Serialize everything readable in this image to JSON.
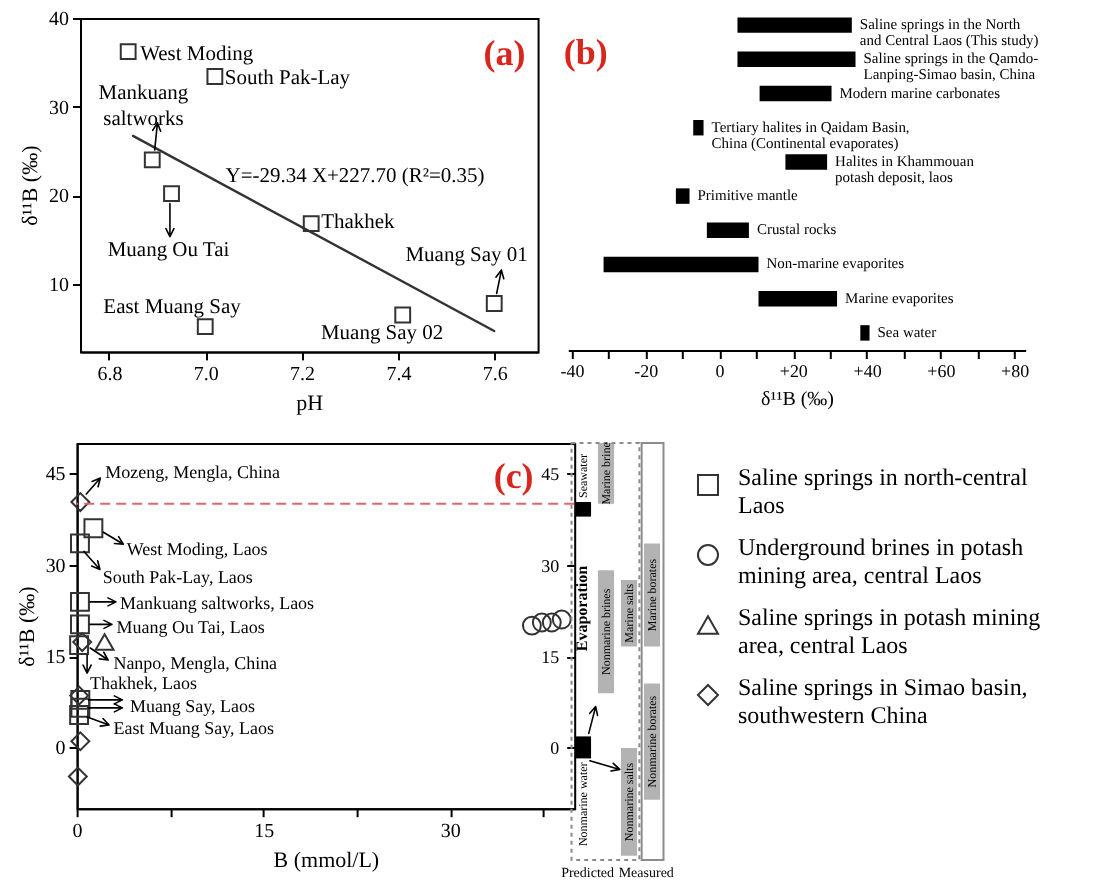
{
  "chart_data": [
    {
      "type": "scatter",
      "title": "(a)",
      "xlabel": "pH",
      "ylabel": "δ¹¹B (‰)",
      "xlim": [
        6.74,
        7.69
      ],
      "ylim": [
        2.4,
        40
      ],
      "xticks": [
        6.8,
        {
          "value": 7,
          "label": "7.0"
        },
        7.2,
        7.4,
        7.6
      ],
      "yticks": [
        10,
        20,
        30,
        40
      ],
      "marker": "square",
      "series": [
        {
          "color": "#333333",
          "x": [
            6.84,
            7.02,
            6.89,
            6.93,
            7.22,
            7.0,
            7.41,
            7.6
          ],
          "values": [
            36.2,
            33.4,
            24.0,
            20.2,
            16.8,
            5.2,
            6.5,
            7.8
          ]
        },
        {
          "type": "line",
          "color": "#333333",
          "marker": "none",
          "x": [
            6.85,
            7.6
          ],
          "values": [
            26.7,
            4.7
          ]
        }
      ],
      "annotations": [
        {
          "text": "West Moding",
          "x": 6.84,
          "y": 36.2
        },
        {
          "text": "South Pak-Lay",
          "x": 7.02,
          "y": 33.4
        },
        {
          "text": "Mankuang\nsaltworks",
          "x": 6.89,
          "y": 24.0
        },
        {
          "text": "Muang Ou Tai",
          "x": 6.93,
          "y": 20.2
        },
        {
          "text": "Thakhek",
          "x": 7.22,
          "y": 16.8
        },
        {
          "text": "East Muang Say",
          "x": 7.0,
          "y": 5.2
        },
        {
          "text": "Muang Say 02",
          "x": 7.41,
          "y": 6.5
        },
        {
          "text": "Muang Say 01",
          "x": 7.6,
          "y": 7.8
        },
        {
          "text": "Y=-29.34 X+227.70 (R²=0.35)",
          "x": 7.05,
          "y": 20.9
        }
      ]
    },
    {
      "type": "bar",
      "title": "(b)",
      "orientation": "horizontal",
      "xlabel": "δ¹¹B (‰)",
      "categories": [
        "Saline springs in the North\nand Central Laos (This study)",
        "Saline springs in the Qamdo-\nLanping-Simao basin, China",
        "Modern marine carbonates",
        "Tertiary halites in Qaidam Basin,\nChina (Continental evaporates)",
        "Halites in Khammouan\npotash deposit, laos",
        "Primitive mantle",
        "Crustal rocks",
        "Non-marine evaporites",
        "Marine evaporites",
        "Sea water"
      ],
      "base": [
        5,
        5,
        11,
        -7,
        18,
        -11.7,
        -3.3,
        -31.3,
        10.7,
        38.3
      ],
      "values": [
        31,
        32,
        19.5,
        2.8,
        11.3,
        3.7,
        11.4,
        42,
        21.3,
        2.5
      ],
      "color": "#000000",
      "xlim": [
        -41,
        83
      ],
      "xticks": [
        -40,
        {
          "value": -30,
          "label": null
        },
        -20,
        {
          "value": -10,
          "label": null
        },
        0,
        {
          "value": 10,
          "label": null
        },
        {
          "value": 20,
          "label": "+20"
        },
        {
          "value": 30,
          "label": null
        },
        {
          "value": 40,
          "label": "+40"
        },
        {
          "value": 50,
          "label": null
        },
        {
          "value": 60,
          "label": "+60"
        },
        {
          "value": 70,
          "label": null
        },
        {
          "value": 80,
          "label": "+80"
        }
      ]
    },
    {
      "type": "scatter",
      "title": "(c)",
      "xlabel": "B (mmol/L)",
      "ylabel": "δ¹¹B (‰)",
      "xlim": [
        0,
        40
      ],
      "ylim": [
        -10,
        50
      ],
      "y2lim": [
        -10,
        50
      ],
      "xticks": [
        0,
        {
          "value": 7.5,
          "label": null
        },
        15,
        {
          "value": 22.5,
          "label": null
        },
        30,
        {
          "value": 37.5,
          "label": null
        }
      ],
      "yticks": [
        0,
        15,
        30,
        45
      ],
      "y2ticks": [
        0,
        15,
        30,
        45
      ],
      "legend": "right",
      "series": [
        {
          "name": "Saline springs in north-central\nLaos",
          "color": "#333333",
          "marker": "square",
          "x": [
            1.35,
            0.27,
            0.27,
            0.27,
            0.2,
            0.3,
            0.3,
            0.2
          ],
          "values": [
            36.0,
            33.5,
            23.9,
            20.2,
            16.8,
            7.8,
            6.5,
            5.3
          ]
        },
        {
          "name": "Underground brines in potash\nmining area, central Laos",
          "color": "#333333",
          "marker": "circle",
          "x": [
            36.6,
            37.4,
            38.2,
            39.0
          ],
          "values": [
            20.0,
            20.5,
            20.5,
            21.0
          ]
        },
        {
          "name": "Saline springs in potash mining\narea, central Laos",
          "color": "#333333",
          "marker": "triangle",
          "x": [
            2.25
          ],
          "values": [
            17.3
          ]
        },
        {
          "name": "Saline springs in Simao basin,\nsouthwestern China",
          "color": "#333333",
          "marker": "diamond",
          "x": [
            0.3,
            0.45,
            0.2,
            0.3,
            0.1
          ],
          "values": [
            40.3,
            17.3,
            8.5,
            1.0,
            -4.8
          ]
        }
      ],
      "ref_lines": [
        {
          "axis": "y",
          "value": 40,
          "color": "#e06666",
          "line_style": "dashed"
        }
      ],
      "annotations": [
        {
          "text": "Mozeng, Mengla, China",
          "x": 0.3,
          "y": 40.3
        },
        {
          "text": "West Moding, Laos",
          "x": 1.35,
          "y": 36.0
        },
        {
          "text": "South Pak-Lay, Laos",
          "x": 0.27,
          "y": 33.5
        },
        {
          "text": "Mankuang saltworks, Laos",
          "x": 0.27,
          "y": 23.9
        },
        {
          "text": "Muang Ou Tai, Laos",
          "x": 0.27,
          "y": 20.2
        },
        {
          "text": "Nanpo, Mengla, China",
          "x": 0.45,
          "y": 17.3
        },
        {
          "text": "Thakhek, Laos",
          "x": 0.2,
          "y": 16.8
        },
        {
          "text": "Muang Say, Laos",
          "x": 0.3,
          "y": 7.8
        },
        {
          "text": "East Muang Say, Laos",
          "x": 0.2,
          "y": 5.3
        }
      ]
    },
    {
      "type": "other",
      "annotations": [
        "Seawater",
        "Marine brine",
        "Evaporation",
        "Nonmarine brines",
        "Marine salts",
        "Nonmarine water",
        "Nonmarine salts",
        "Marine borates",
        "Nonmarine borates",
        "Predicted",
        "Measured"
      ]
    }
  ]
}
